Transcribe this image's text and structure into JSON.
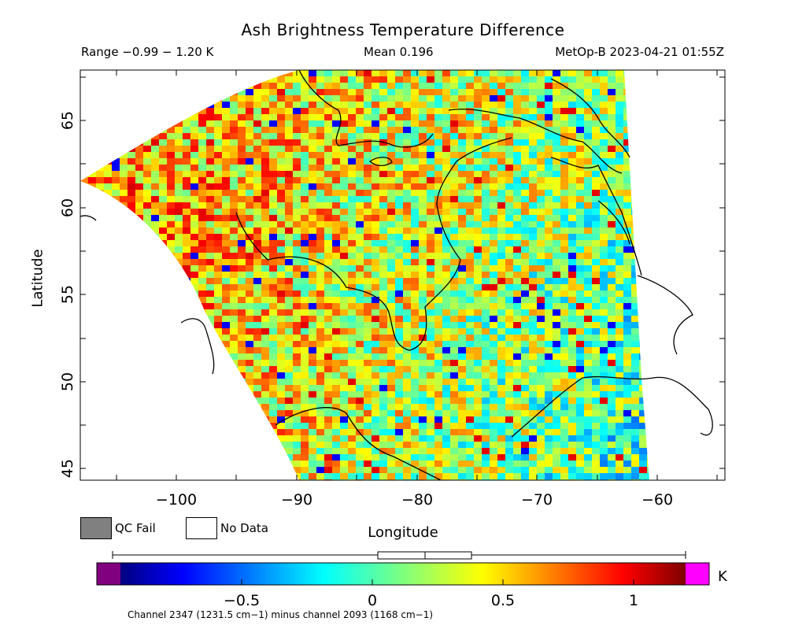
{
  "header": {
    "title": "Ash Brightness Temperature Difference",
    "range": "Range −0.99 − 1.20 K",
    "mean": "Mean 0.196",
    "satellite": "MetOp-B 2023-04-21 01:55Z"
  },
  "axes": {
    "xlabel": "Longitude",
    "ylabel": "Latitude",
    "x_ticks": [
      "−100",
      "−90",
      "−80",
      "−70",
      "−60"
    ],
    "y_ticks": [
      "45",
      "50",
      "55",
      "60",
      "65"
    ]
  },
  "legend": {
    "qc_fail": "QC Fail",
    "no_data": "No Data",
    "qc_fail_color": "#808080",
    "no_data_color": "#ffffff"
  },
  "colorbar": {
    "unit": "K",
    "ticks": [
      "−0.5",
      "0",
      "0.5",
      "1"
    ],
    "under_color": "#800080",
    "over_color": "#ff00ff",
    "footnote": "Channel 2347 (1231.5 cm−1) minus channel 2093 (1168 cm−1)"
  }
}
